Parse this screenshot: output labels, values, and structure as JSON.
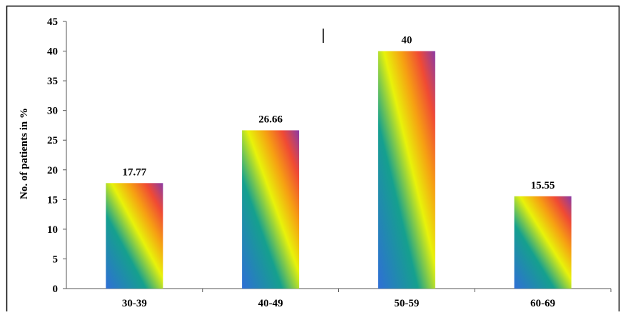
{
  "chart_data": {
    "type": "bar",
    "categories": [
      "30-39",
      "40-49",
      "50-59",
      "60-69"
    ],
    "values": [
      17.77,
      26.66,
      40,
      15.55
    ],
    "data_labels": [
      "17.77",
      "26.66",
      "40",
      "15.55"
    ],
    "title": "",
    "xlabel": "",
    "ylabel": "No. of patients in %",
    "ylim": [
      0,
      45
    ],
    "yticks": [
      "0",
      "5",
      "10",
      "15",
      "20",
      "25",
      "30",
      "35",
      "40",
      "45"
    ],
    "grid": false,
    "legend": "none",
    "bar_gradient": [
      "#2f6fd6",
      "#15a08e",
      "#e8f20a",
      "#f6a012",
      "#f04a34",
      "#8a3aa6"
    ]
  }
}
